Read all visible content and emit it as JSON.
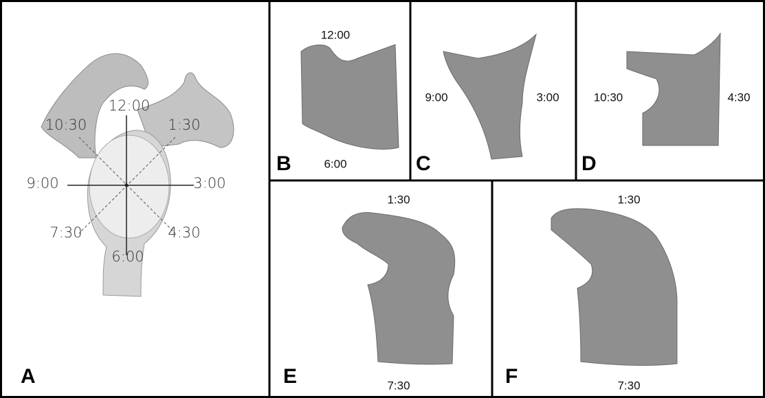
{
  "panels": [
    {
      "letter": "A",
      "labels": [
        "12:00",
        "1:30",
        "10:30",
        "9:00",
        "3:00",
        "7:30",
        "4:30",
        "6:00"
      ]
    },
    {
      "letter": "B",
      "labels": [
        "12:00",
        "6:00"
      ]
    },
    {
      "letter": "C",
      "labels": [
        "9:00",
        "3:00"
      ]
    },
    {
      "letter": "D",
      "labels": [
        "10:30",
        "4:30"
      ]
    },
    {
      "letter": "E",
      "labels": [
        "1:30",
        "7:30"
      ]
    },
    {
      "letter": "F",
      "labels": [
        "1:30",
        "7:30"
      ]
    }
  ]
}
